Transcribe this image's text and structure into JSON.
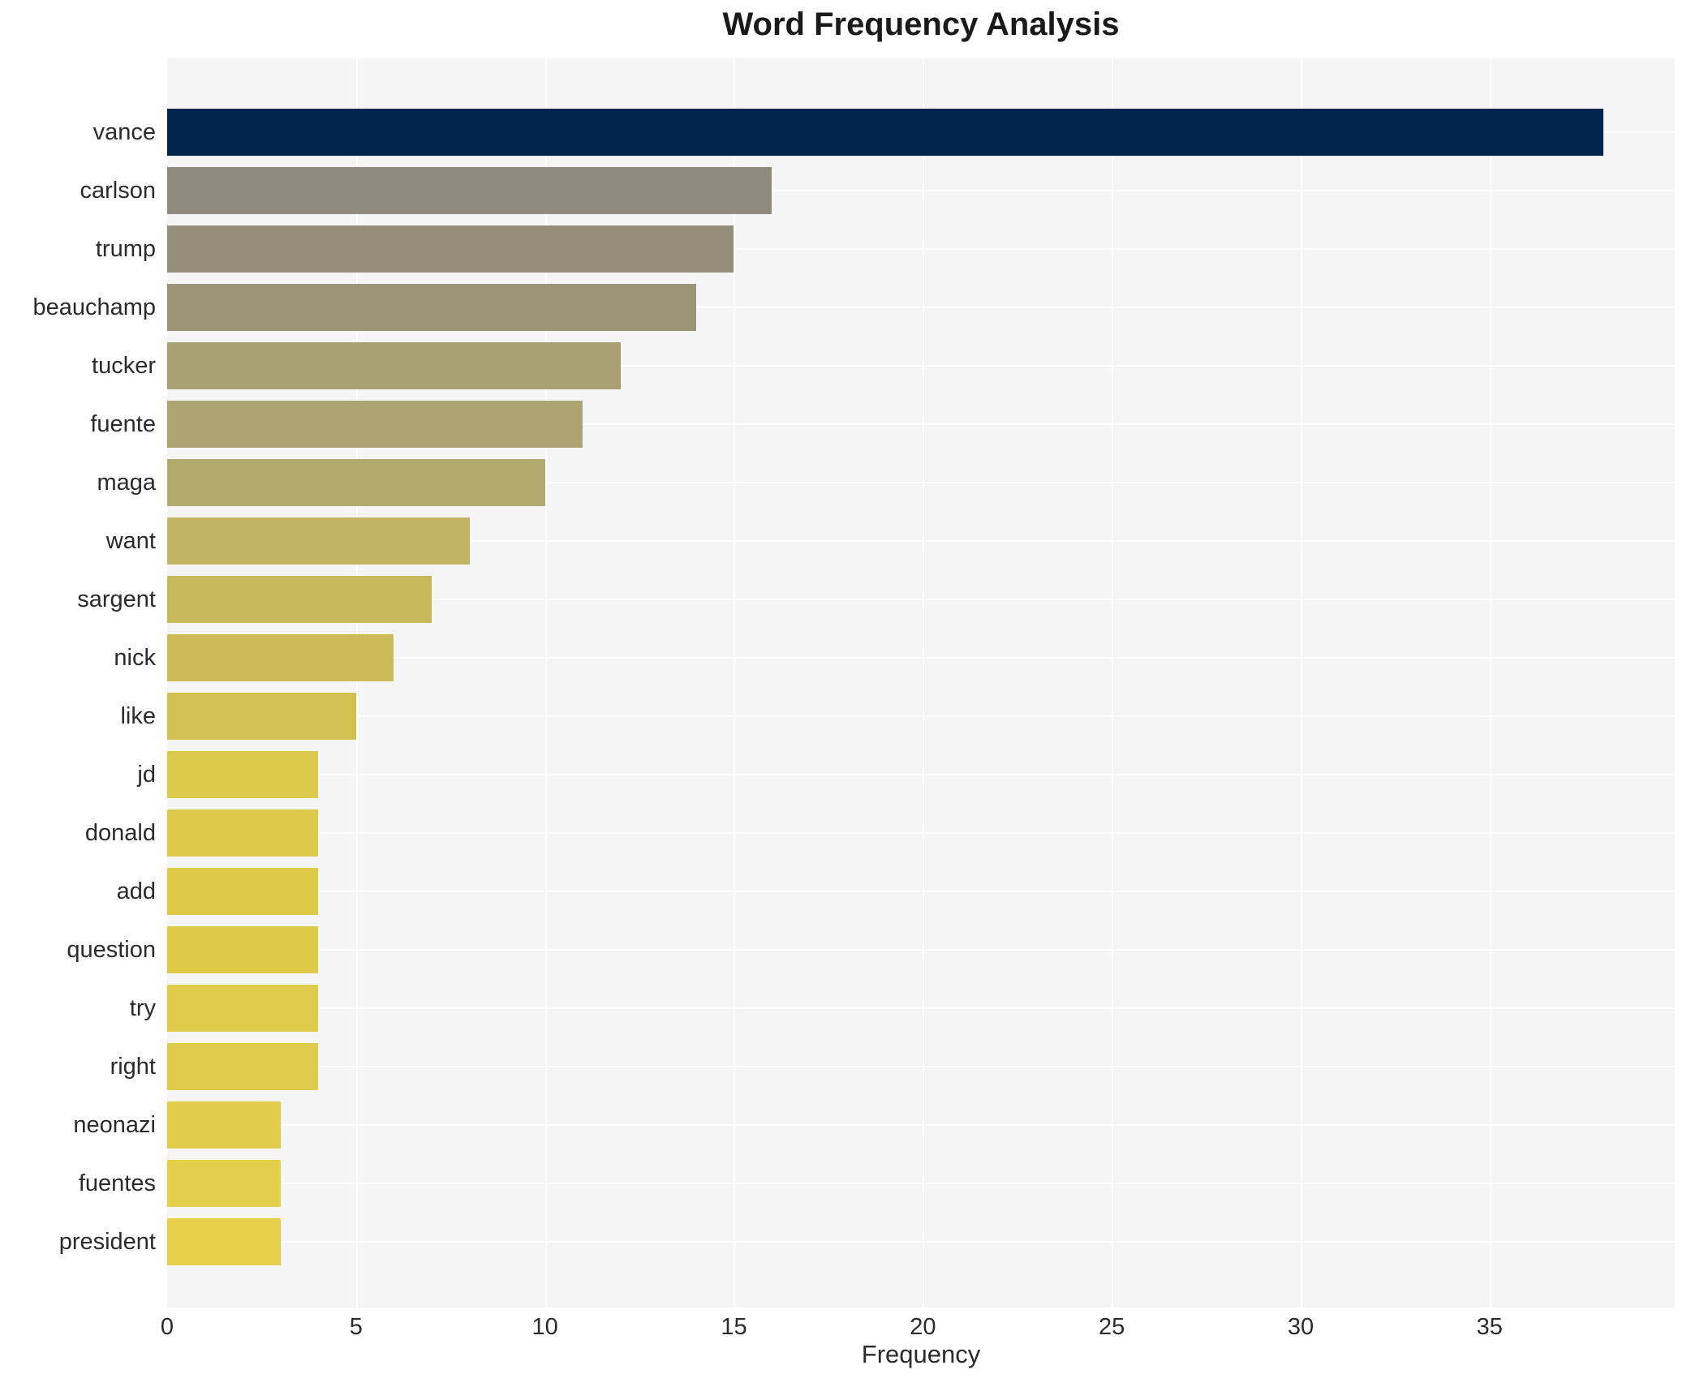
{
  "chart_data": {
    "type": "bar",
    "orientation": "horizontal",
    "title": "Word Frequency Analysis",
    "xlabel": "Frequency",
    "ylabel": "",
    "categories": [
      "vance",
      "carlson",
      "trump",
      "beauchamp",
      "tucker",
      "fuente",
      "maga",
      "want",
      "sargent",
      "nick",
      "like",
      "jd",
      "donald",
      "add",
      "question",
      "try",
      "right",
      "neonazi",
      "fuentes",
      "president"
    ],
    "values": [
      38,
      16,
      15,
      14,
      12,
      11,
      10,
      8,
      7,
      6,
      5,
      4,
      4,
      4,
      4,
      4,
      4,
      3,
      3,
      3
    ],
    "bar_colors": [
      "#01234e",
      "#8f8b7c",
      "#948e78",
      "#9c9676",
      "#a89f73",
      "#ada471",
      "#b2a96c",
      "#c2b462",
      "#c7b75d",
      "#cbbc57",
      "#d1c151",
      "#dbc94b",
      "#dcc948",
      "#ddca47",
      "#ddca46",
      "#dfcb4a",
      "#dfcb49",
      "#e3ce4b",
      "#e4cf4b",
      "#e6d04a"
    ],
    "xlim": [
      0,
      39.9
    ],
    "xticks": [
      0,
      5,
      10,
      15,
      20,
      25,
      30,
      35
    ],
    "grid": "white gridlines on light gray plot background, vertical at xticks and horizontal at bar centers",
    "legend": "none",
    "plot_bg": "#f5f5f6",
    "figure_bg": "#ffffff",
    "gridline_color": "#ffffff",
    "text_color": "#2b2b2b",
    "title_color": "#1a1a1a"
  }
}
